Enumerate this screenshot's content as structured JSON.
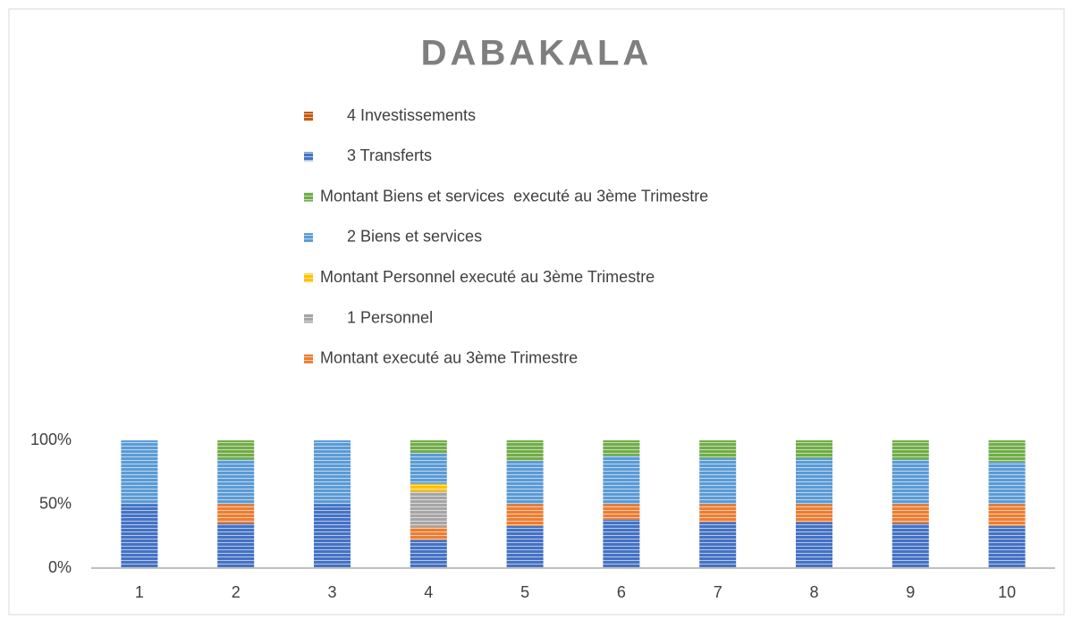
{
  "chart_data": {
    "type": "bar",
    "stacked": true,
    "title": "DABAKALA",
    "categories": [
      "1",
      "2",
      "3",
      "4",
      "5",
      "6",
      "7",
      "8",
      "9",
      "10"
    ],
    "series": [
      {
        "name": "3 Transferts",
        "color": "#4472c4",
        "values": [
          50,
          35,
          50,
          22,
          33,
          38,
          36,
          36,
          35,
          33
        ]
      },
      {
        "name": "Montant executé au 3ème Trimestre",
        "color": "#ed7d31",
        "values": [
          0,
          15,
          0,
          10,
          17,
          12,
          14,
          14,
          15,
          17
        ]
      },
      {
        "name": "1 Personnel",
        "color": "#a5a5a5",
        "values": [
          0,
          0,
          0,
          28,
          0,
          0,
          0,
          0,
          0,
          0
        ]
      },
      {
        "name": "Montant Personnel executé au 3ème Trimestre",
        "color": "#ffc000",
        "values": [
          0,
          0,
          0,
          6,
          0,
          0,
          0,
          0,
          0,
          0
        ]
      },
      {
        "name": "2 Biens et services",
        "color": "#5b9bd5",
        "values": [
          50,
          35,
          50,
          24,
          34,
          38,
          36,
          36,
          35,
          33
        ]
      },
      {
        "name": "Montant Biens et services  executé au 3ème Trimestre",
        "color": "#70ad47",
        "values": [
          0,
          15,
          0,
          10,
          16,
          12,
          14,
          14,
          15,
          17
        ]
      },
      {
        "name": "4 Investissements",
        "color": "#c55a11",
        "values": [
          0,
          0,
          0,
          0,
          0,
          0,
          0,
          0,
          0,
          0
        ]
      }
    ],
    "ylim": [
      0,
      100
    ],
    "yticks": [
      {
        "value": 0,
        "label": "0%"
      },
      {
        "value": 50,
        "label": "50%"
      },
      {
        "value": 100,
        "label": "100%"
      }
    ],
    "grid": false
  }
}
